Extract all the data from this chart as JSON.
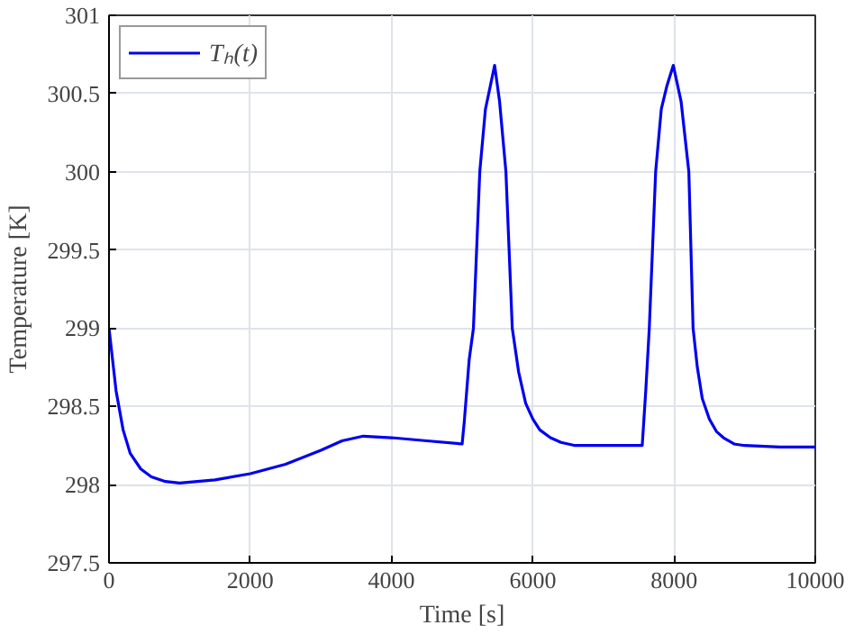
{
  "chart_data": {
    "type": "line",
    "xlabel": "Time [s]",
    "ylabel": "Temperature [K]",
    "xlim": [
      0,
      10000
    ],
    "ylim": [
      297.5,
      301
    ],
    "xticks": [
      0,
      2000,
      4000,
      6000,
      8000,
      10000
    ],
    "yticks": [
      297.5,
      298,
      298.5,
      299,
      299.5,
      300,
      300.5,
      301
    ],
    "grid": true,
    "legend": "top left",
    "line_style": "solid",
    "series": [
      {
        "name": "Tₕ(t)",
        "color": "#0000ee",
        "x": [
          0,
          100,
          200,
          300,
          450,
          600,
          800,
          1000,
          1500,
          2000,
          2500,
          3000,
          3300,
          3600,
          4000,
          4500,
          5000,
          5030,
          5100,
          5160,
          5250,
          5330,
          5400,
          5460,
          5530,
          5620,
          5710,
          5800,
          5900,
          6000,
          6100,
          6250,
          6400,
          6600,
          7000,
          7550,
          7600,
          7650,
          7740,
          7820,
          7900,
          7990,
          8100,
          8210,
          8270,
          8330,
          8400,
          8500,
          8600,
          8700,
          8850,
          9000,
          9500,
          10000
        ],
        "values": [
          299.0,
          298.6,
          298.35,
          298.2,
          298.1,
          298.05,
          298.02,
          298.01,
          298.03,
          298.07,
          298.13,
          298.22,
          298.28,
          298.31,
          298.3,
          298.28,
          298.26,
          298.4,
          298.8,
          299.0,
          300.0,
          300.4,
          300.55,
          300.68,
          300.45,
          300.0,
          299.0,
          298.72,
          298.52,
          298.42,
          298.35,
          298.3,
          298.27,
          298.25,
          298.25,
          298.25,
          298.6,
          299.0,
          300.0,
          300.4,
          300.55,
          300.68,
          300.45,
          300.0,
          299.0,
          298.75,
          298.55,
          298.42,
          298.34,
          298.3,
          298.26,
          298.25,
          298.24,
          298.24
        ]
      }
    ]
  }
}
